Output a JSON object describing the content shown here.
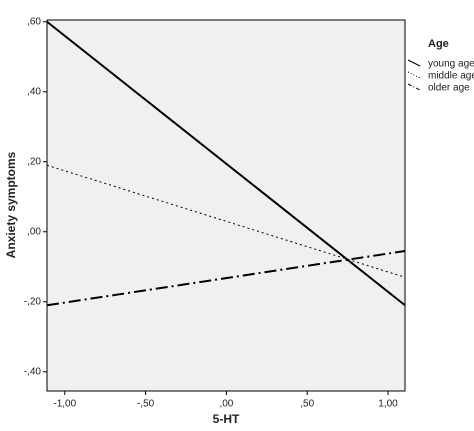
{
  "chart_data": {
    "type": "line",
    "x_label": "5-HT",
    "y_label": "Anxiety symptoms",
    "legend_title": "Age",
    "x": [
      -1.11,
      1.105
    ],
    "series": [
      {
        "name": "young age",
        "color": "#000000",
        "style": "solid",
        "values": [
          0.6,
          -0.21
        ]
      },
      {
        "name": "middle age",
        "color": "#000000",
        "style": "dotted",
        "values": [
          0.19,
          -0.13
        ]
      },
      {
        "name": "older age",
        "color": "#000000",
        "style": "dashdot",
        "values": [
          -0.21,
          -0.055
        ]
      }
    ],
    "xlim": [
      -1.11,
      1.105
    ],
    "ylim": [
      -0.455,
      0.605
    ],
    "xticks": [
      {
        "value": -1,
        "label": "-1,00"
      },
      {
        "value": -0.5,
        "label": "-,50"
      },
      {
        "value": 0,
        "label": ",00"
      },
      {
        "value": 0.5,
        "label": ",50"
      },
      {
        "value": 1,
        "label": "1,00"
      }
    ],
    "yticks": [
      {
        "value": 0.6,
        "label": ",60"
      },
      {
        "value": 0.4,
        "label": ",40"
      },
      {
        "value": 0.2,
        "label": ",20"
      },
      {
        "value": 0,
        "label": ",00"
      },
      {
        "value": -0.2,
        "label": "-,20"
      },
      {
        "value": -0.4,
        "label": "-,40"
      }
    ],
    "plot_background": "#f0f0f0",
    "legend_position": "right"
  }
}
